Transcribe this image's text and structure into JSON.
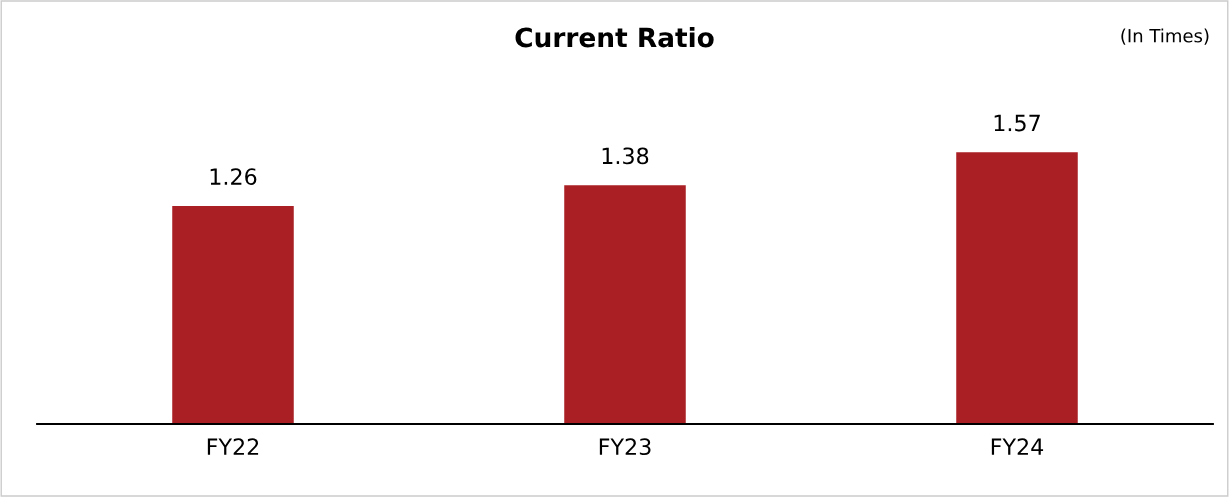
{
  "chart_data": {
    "type": "bar",
    "title": "Current Ratio",
    "categories": [
      "FY22",
      "FY23",
      "FY24"
    ],
    "values": [
      1.26,
      1.38,
      1.57
    ],
    "color": "#aa1f23",
    "data_labels": true,
    "grid": false,
    "tick_labels": "x",
    "annotations": [
      "(In Times)"
    ]
  }
}
